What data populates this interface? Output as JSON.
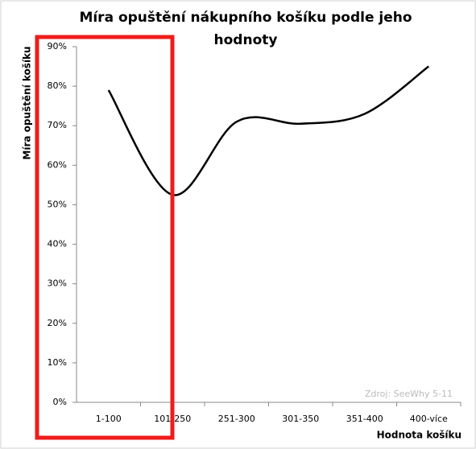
{
  "chart_data": {
    "type": "line",
    "title": "Míra opuštění nákupního košíku podle jeho hodnoty",
    "title_lines": [
      "Míra opuštění nákupního košíku podle jeho",
      "hodnoty"
    ],
    "y_label": "Míra opuštění košíku",
    "x_label": "Hodnota košíku",
    "source": "Zdroj: SeeWhy 5-11",
    "categories": [
      "1-100",
      "101-250",
      "251-300",
      "301-350",
      "351-400",
      "400-více"
    ],
    "values": [
      79,
      52.5,
      71,
      70.5,
      73,
      85
    ],
    "color": "#000000",
    "smooth": true,
    "grid": false,
    "ylim": [
      0,
      90
    ],
    "yticks": [
      {
        "value": 0,
        "label": "0%"
      },
      {
        "value": 10,
        "label": "10%"
      },
      {
        "value": 20,
        "label": "20%"
      },
      {
        "value": 30,
        "label": "30%"
      },
      {
        "value": 40,
        "label": "40%"
      },
      {
        "value": 50,
        "label": "50%"
      },
      {
        "value": 60,
        "label": "60%"
      },
      {
        "value": 70,
        "label": "70%"
      },
      {
        "value": 80,
        "label": "80%"
      },
      {
        "value": 90,
        "label": "90%"
      }
    ]
  }
}
